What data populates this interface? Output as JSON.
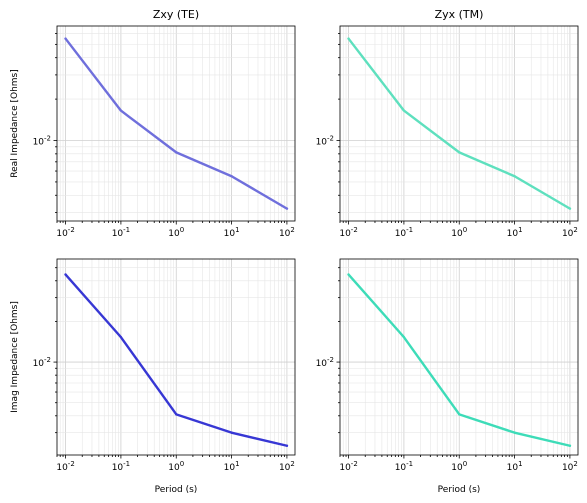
{
  "chart_data": [
    {
      "type": "line",
      "title": "Zxy (TE)",
      "xlabel": "",
      "ylabel": "Real Impedance [Ohms]",
      "xscale": "log",
      "yscale": "log",
      "xlim": [
        0.007,
        140
      ],
      "ylim": [
        0.0026,
        0.068
      ],
      "x_ticks": [
        "10^-2",
        "10^-1",
        "10^0",
        "10^1",
        "10^2"
      ],
      "y_ticks": [
        "10^-2"
      ],
      "grid": true,
      "legend": "none",
      "series": [
        {
          "color": "#6f6fdc",
          "x": [
            0.01,
            0.1,
            1,
            10,
            100
          ],
          "y": [
            0.055,
            0.0165,
            0.0082,
            0.0055,
            0.0032
          ]
        }
      ]
    },
    {
      "type": "line",
      "title": "Zyx (TM)",
      "xlabel": "",
      "ylabel": "",
      "xscale": "log",
      "yscale": "log",
      "xlim": [
        0.007,
        140
      ],
      "ylim": [
        0.0026,
        0.068
      ],
      "x_ticks": [
        "10^-2",
        "10^-1",
        "10^0",
        "10^1",
        "10^2"
      ],
      "y_ticks": [
        "10^-2"
      ],
      "grid": true,
      "legend": "none",
      "series": [
        {
          "color": "#5ee0be",
          "x": [
            0.01,
            0.1,
            1,
            10,
            100
          ],
          "y": [
            0.055,
            0.0165,
            0.0082,
            0.0055,
            0.0032
          ]
        }
      ]
    },
    {
      "type": "line",
      "title": "",
      "xlabel": "Period (s)",
      "ylabel": "Imag Impedance [Ohms]",
      "xscale": "log",
      "yscale": "log",
      "xlim": [
        0.007,
        140
      ],
      "ylim": [
        0.00205,
        0.058
      ],
      "x_ticks": [
        "10^-2",
        "10^-1",
        "10^0",
        "10^1",
        "10^2"
      ],
      "y_ticks": [
        "10^-2"
      ],
      "grid": true,
      "legend": "none",
      "series": [
        {
          "color": "#3737d4",
          "x": [
            0.01,
            0.1,
            1,
            10,
            100
          ],
          "y": [
            0.0445,
            0.0153,
            0.0041,
            0.003,
            0.0024
          ]
        }
      ]
    },
    {
      "type": "line",
      "title": "",
      "xlabel": "Period (s)",
      "ylabel": "",
      "xscale": "log",
      "yscale": "log",
      "xlim": [
        0.007,
        140
      ],
      "ylim": [
        0.00205,
        0.058
      ],
      "x_ticks": [
        "10^-2",
        "10^-1",
        "10^0",
        "10^1",
        "10^2"
      ],
      "y_ticks": [
        "10^-2"
      ],
      "grid": true,
      "legend": "none",
      "series": [
        {
          "color": "#3ddcb8",
          "x": [
            0.01,
            0.1,
            1,
            10,
            100
          ],
          "y": [
            0.0445,
            0.0153,
            0.0041,
            0.003,
            0.0024
          ]
        }
      ]
    }
  ]
}
